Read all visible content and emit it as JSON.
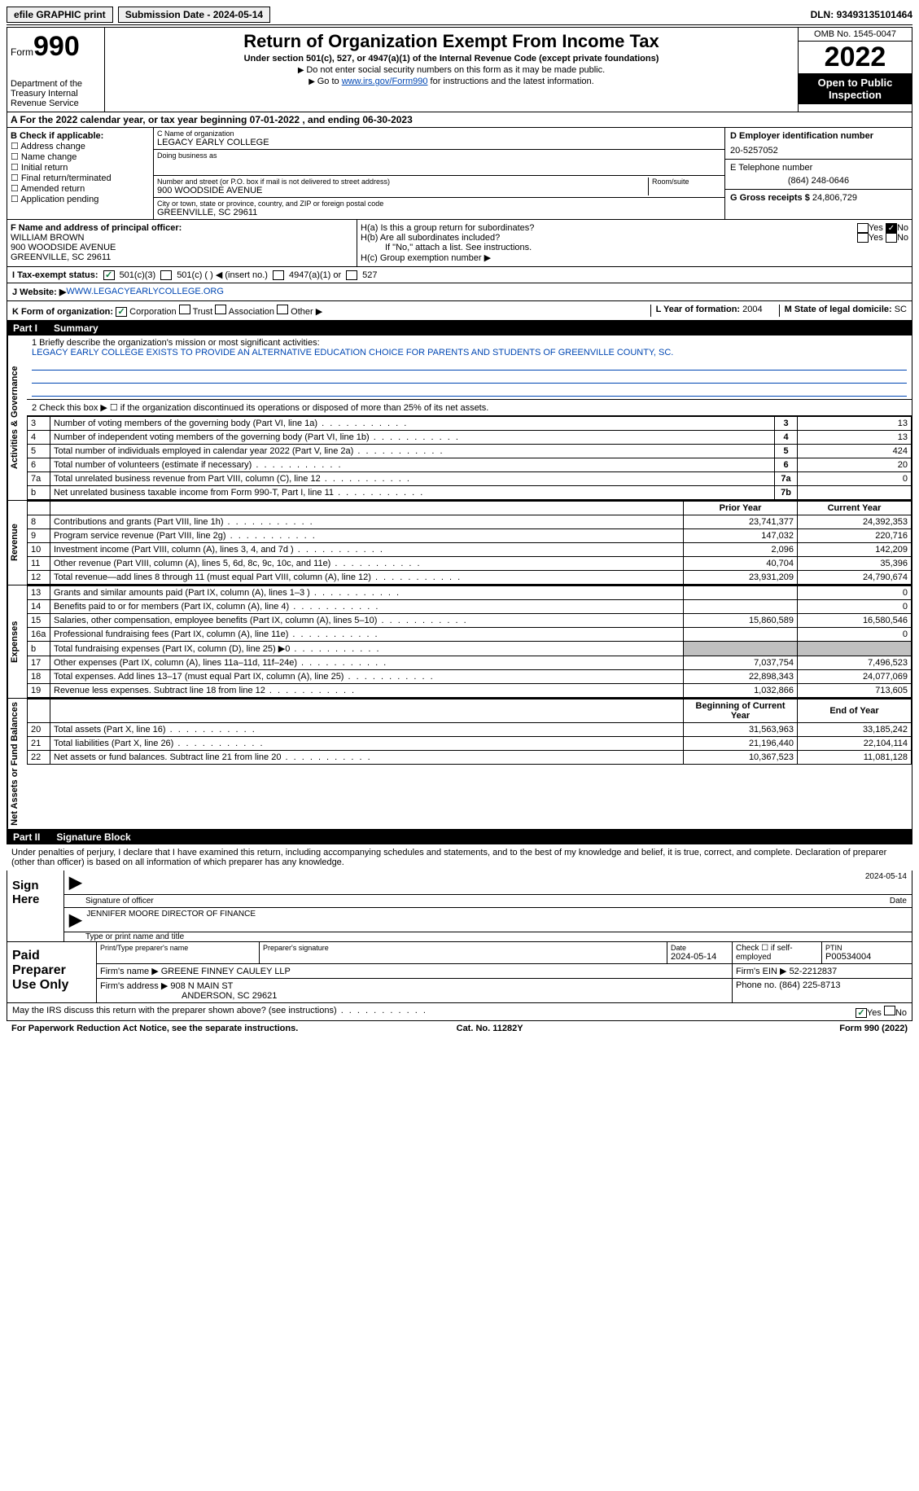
{
  "topbar": {
    "efile": "efile GRAPHIC print",
    "subdate_lbl": "Submission Date - ",
    "subdate": "2024-05-14",
    "dln_lbl": "DLN: ",
    "dln": "93493135101464"
  },
  "header": {
    "form_word": "Form",
    "form_num": "990",
    "dept": "Department of the Treasury Internal Revenue Service",
    "title": "Return of Organization Exempt From Income Tax",
    "subtitle": "Under section 501(c), 527, or 4947(a)(1) of the Internal Revenue Code (except private foundations)",
    "note1": "Do not enter social security numbers on this form as it may be made public.",
    "note2_pre": "Go to ",
    "note2_link": "www.irs.gov/Form990",
    "note2_post": " for instructions and the latest information.",
    "omb": "OMB No. 1545-0047",
    "year": "2022",
    "open": "Open to Public Inspection"
  },
  "a_line": "A  For the 2022 calendar year, or tax year beginning 07-01-2022    , and ending 06-30-2023",
  "b": {
    "hdr": "B Check if applicable:",
    "addr": "Address change",
    "name": "Name change",
    "init": "Initial return",
    "final": "Final return/terminated",
    "amend": "Amended return",
    "app": "Application pending"
  },
  "c": {
    "name_lbl": "C Name of organization",
    "name": "LEGACY EARLY COLLEGE",
    "dba_lbl": "Doing business as",
    "addr_lbl": "Number and street (or P.O. box if mail is not delivered to street address)",
    "room_lbl": "Room/suite",
    "addr": "900 WOODSIDE AVENUE",
    "city_lbl": "City or town, state or province, country, and ZIP or foreign postal code",
    "city": "GREENVILLE, SC  29611"
  },
  "d": {
    "ein_lbl": "D Employer identification number",
    "ein": "20-5257052",
    "tel_lbl": "E Telephone number",
    "tel": "(864) 248-0646",
    "gross_lbl": "G Gross receipts $ ",
    "gross": "24,806,729"
  },
  "f": {
    "lbl": "F  Name and address of principal officer:",
    "name": "WILLIAM BROWN",
    "addr1": "900 WOODSIDE AVENUE",
    "addr2": "GREENVILLE, SC  29611"
  },
  "h": {
    "a": "H(a)  Is this a group return for subordinates?",
    "b": "H(b)  Are all subordinates included?",
    "bnote": "If \"No,\" attach a list. See instructions.",
    "c": "H(c)  Group exemption number ▶",
    "yes": "Yes",
    "no": "No"
  },
  "i": {
    "lbl": "I    Tax-exempt status:",
    "o1": "501(c)(3)",
    "o2": "501(c) (   ) ◀ (insert no.)",
    "o3": "4947(a)(1) or",
    "o4": "527"
  },
  "j": {
    "lbl": "J   Website: ▶  ",
    "val": "WWW.LEGACYEARLYCOLLEGE.ORG"
  },
  "k": {
    "lbl": "K Form of organization:",
    "corp": "Corporation",
    "trust": "Trust",
    "assoc": "Association",
    "other": "Other ▶",
    "l_lbl": "L Year of formation: ",
    "l_val": "2004",
    "m_lbl": "M State of legal domicile: ",
    "m_val": "SC"
  },
  "part1": {
    "pn": "Part I",
    "title": "Summary"
  },
  "vtabs": {
    "ag": "Activities & Governance",
    "rev": "Revenue",
    "exp": "Expenses",
    "na": "Net Assets or Fund Balances"
  },
  "sum": {
    "l1a": "1  Briefly describe the organization's mission or most significant activities:",
    "l1b": "LEGACY EARLY COLLEGE EXISTS TO PROVIDE AN ALTERNATIVE EDUCATION CHOICE FOR PARENTS AND STUDENTS OF GREENVILLE COUNTY, SC.",
    "l2": "2     Check this box ▶ ☐  if the organization discontinued its operations or disposed of more than 25% of its net assets.",
    "rows_ag": [
      {
        "n": "3",
        "d": "Number of voting members of the governing body (Part VI, line 1a)",
        "box": "3",
        "v": "13"
      },
      {
        "n": "4",
        "d": "Number of independent voting members of the governing body (Part VI, line 1b)",
        "box": "4",
        "v": "13"
      },
      {
        "n": "5",
        "d": "Total number of individuals employed in calendar year 2022 (Part V, line 2a)",
        "box": "5",
        "v": "424"
      },
      {
        "n": "6",
        "d": "Total number of volunteers (estimate if necessary)",
        "box": "6",
        "v": "20"
      },
      {
        "n": "7a",
        "d": "Total unrelated business revenue from Part VIII, column (C), line 12",
        "box": "7a",
        "v": "0"
      },
      {
        "n": "b",
        "d": "Net unrelated business taxable income from Form 990-T, Part I, line 11",
        "box": "7b",
        "v": ""
      }
    ],
    "py": "Prior Year",
    "cy": "Current Year",
    "rows_rev": [
      {
        "n": "8",
        "d": "Contributions and grants (Part VIII, line 1h)",
        "p": "23,741,377",
        "c": "24,392,353"
      },
      {
        "n": "9",
        "d": "Program service revenue (Part VIII, line 2g)",
        "p": "147,032",
        "c": "220,716"
      },
      {
        "n": "10",
        "d": "Investment income (Part VIII, column (A), lines 3, 4, and 7d )",
        "p": "2,096",
        "c": "142,209"
      },
      {
        "n": "11",
        "d": "Other revenue (Part VIII, column (A), lines 5, 6d, 8c, 9c, 10c, and 11e)",
        "p": "40,704",
        "c": "35,396"
      },
      {
        "n": "12",
        "d": "Total revenue—add lines 8 through 11 (must equal Part VIII, column (A), line 12)",
        "p": "23,931,209",
        "c": "24,790,674"
      }
    ],
    "rows_exp": [
      {
        "n": "13",
        "d": "Grants and similar amounts paid (Part IX, column (A), lines 1–3 )",
        "p": "",
        "c": "0"
      },
      {
        "n": "14",
        "d": "Benefits paid to or for members (Part IX, column (A), line 4)",
        "p": "",
        "c": "0"
      },
      {
        "n": "15",
        "d": "Salaries, other compensation, employee benefits (Part IX, column (A), lines 5–10)",
        "p": "15,860,589",
        "c": "16,580,546"
      },
      {
        "n": "16a",
        "d": "Professional fundraising fees (Part IX, column (A), line 11e)",
        "p": "",
        "c": "0"
      },
      {
        "n": "b",
        "d": "Total fundraising expenses (Part IX, column (D), line 25) ▶0",
        "p": "GRAY",
        "c": "GRAY"
      },
      {
        "n": "17",
        "d": "Other expenses (Part IX, column (A), lines 11a–11d, 11f–24e)",
        "p": "7,037,754",
        "c": "7,496,523"
      },
      {
        "n": "18",
        "d": "Total expenses. Add lines 13–17 (must equal Part IX, column (A), line 25)",
        "p": "22,898,343",
        "c": "24,077,069"
      },
      {
        "n": "19",
        "d": "Revenue less expenses. Subtract line 18 from line 12",
        "p": "1,032,866",
        "c": "713,605"
      }
    ],
    "bcy": "Beginning of Current Year",
    "ecy": "End of Year",
    "rows_na": [
      {
        "n": "20",
        "d": "Total assets (Part X, line 16)",
        "p": "31,563,963",
        "c": "33,185,242"
      },
      {
        "n": "21",
        "d": "Total liabilities (Part X, line 26)",
        "p": "21,196,440",
        "c": "22,104,114"
      },
      {
        "n": "22",
        "d": "Net assets or fund balances. Subtract line 21 from line 20",
        "p": "10,367,523",
        "c": "11,081,128"
      }
    ]
  },
  "part2": {
    "pn": "Part II",
    "title": "Signature Block"
  },
  "sigp": "Under penalties of perjury, I declare that I have examined this return, including accompanying schedules and statements, and to the best of my knowledge and belief, it is true, correct, and complete. Declaration of preparer (other than officer) is based on all information of which preparer has any knowledge.",
  "sign": {
    "here": "Sign Here",
    "date": "2024-05-14",
    "sig_lbl": "Signature of officer",
    "date_lbl": "Date",
    "name": "JENNIFER MOORE  DIRECTOR OF FINANCE",
    "name_lbl": "Type or print name and title"
  },
  "prep": {
    "lbl": "Paid Preparer Use Only",
    "h1": "Print/Type preparer's name",
    "h2": "Preparer's signature",
    "h3_lbl": "Date",
    "h3": "2024-05-14",
    "h4": "Check ☐  if self-employed",
    "h5_lbl": "PTIN",
    "h5": "P00534004",
    "firm_lbl": "Firm's name    ▶ ",
    "firm": "GREENE FINNEY CAULEY LLP",
    "ein_lbl": "Firm's EIN ▶ ",
    "ein": "52-2212837",
    "addr_lbl": "Firm's address ▶ ",
    "addr1": "908 N MAIN ST",
    "addr2": "ANDERSON, SC  29621",
    "phone_lbl": "Phone no. ",
    "phone": "(864) 225-8713"
  },
  "discuss": "May the IRS discuss this return with the preparer shown above? (see instructions)",
  "foot": {
    "l": "For Paperwork Reduction Act Notice, see the separate instructions.",
    "c": "Cat. No. 11282Y",
    "r": "Form 990 (2022)"
  }
}
